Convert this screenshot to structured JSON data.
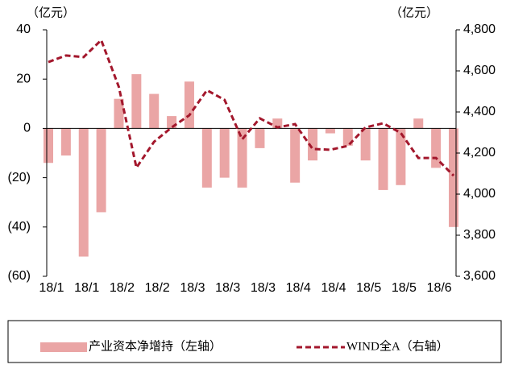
{
  "chart_data": {
    "type": "bar_line",
    "y_unit": "（亿元）",
    "y2_unit": "（亿元）",
    "categories": [
      "18/1",
      null,
      "18/1",
      null,
      "18/2",
      null,
      "18/2",
      null,
      "18/3",
      null,
      "18/3",
      null,
      "18/3",
      null,
      "18/4",
      null,
      "18/4",
      null,
      "18/5",
      null,
      "18/5",
      null,
      "18/6",
      null
    ],
    "series": [
      {
        "name": "产业资本净增持（左轴）",
        "type": "bar",
        "color": "#eaa5a5",
        "values": [
          -14,
          -11,
          -52,
          -34,
          12,
          22,
          14,
          5,
          19,
          -24,
          -20,
          -24,
          -8,
          4,
          -22,
          -13,
          -2,
          -7,
          -13,
          -25,
          -23,
          4,
          -16,
          -40
        ]
      },
      {
        "name": "WIND全A（右轴）",
        "type": "line",
        "axis": "y2",
        "color": "#a3172c",
        "dashed": true,
        "values": [
          4643,
          4675,
          4667,
          4750,
          4522,
          4129,
          4255,
          4325,
          4384,
          4506,
          4459,
          4267,
          4369,
          4325,
          4341,
          4220,
          4216,
          4235,
          4325,
          4345,
          4298,
          4176,
          4176,
          4090
        ]
      }
    ],
    "ylim": [
      -60,
      40
    ],
    "yticks": [
      40,
      20,
      0,
      {
        "value": -20,
        "label": "(20)"
      },
      {
        "value": -40,
        "label": "(40)"
      },
      {
        "value": -60,
        "label": "(60)"
      }
    ],
    "negative_tick_color": "#c00000",
    "y2lim": [
      3600,
      4800
    ],
    "y2ticks": [
      {
        "value": 3600,
        "label": "3,600"
      },
      {
        "value": 3800,
        "label": "3,800"
      },
      {
        "value": 4000,
        "label": "4,000"
      },
      {
        "value": 4200,
        "label": "4,200"
      },
      {
        "value": 4400,
        "label": "4,400"
      },
      {
        "value": 4600,
        "label": "4,600"
      },
      {
        "value": 4800,
        "label": "4,800"
      }
    ],
    "legend": "bottom"
  }
}
